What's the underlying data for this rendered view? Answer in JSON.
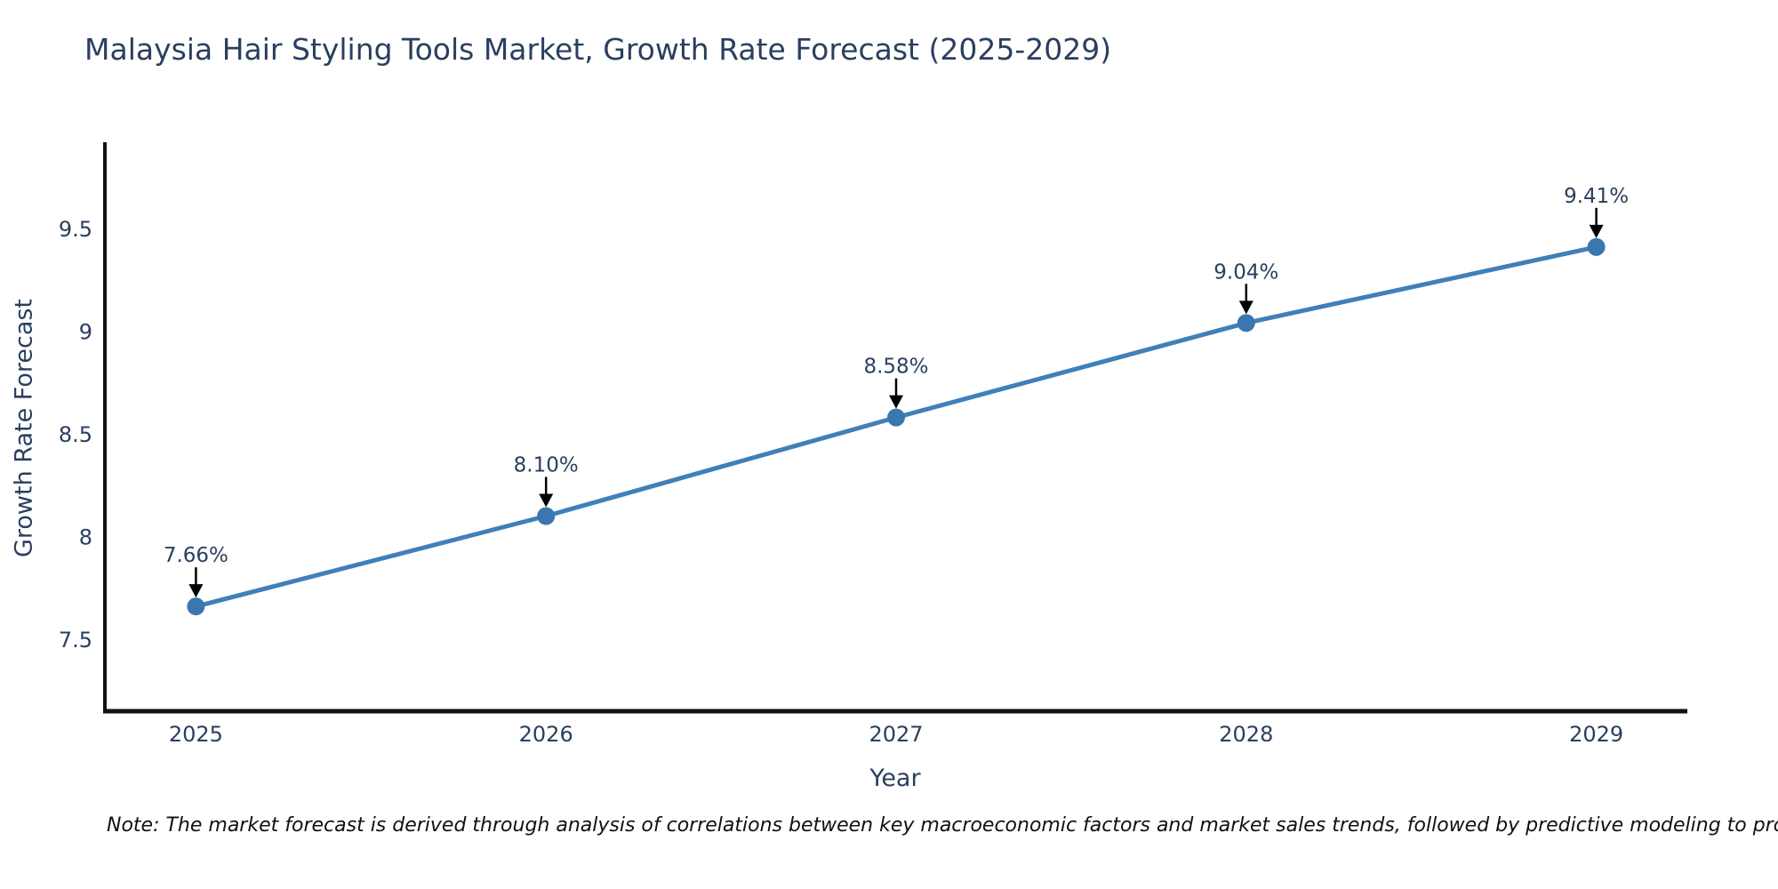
{
  "title": "Malaysia Hair Styling Tools Market, Growth Rate Forecast (2025-2029)",
  "note": "Note: The market forecast is derived through analysis of correlations between key macroeconomic factors and market sales trends, followed by predictive modeling to project future sales",
  "chart_data": {
    "type": "line",
    "title": "Malaysia Hair Styling Tools Market, Growth Rate Forecast (2025-2029)",
    "xlabel": "Year",
    "ylabel": "Growth Rate Forecast",
    "categories": [
      2025,
      2026,
      2027,
      2028,
      2029
    ],
    "x_tick_labels": [
      "2025",
      "2026",
      "2027",
      "2028",
      "2029"
    ],
    "values": [
      7.66,
      8.1,
      8.58,
      9.04,
      9.41
    ],
    "point_labels": [
      "7.66%",
      "8.10%",
      "8.58%",
      "9.04%",
      "9.41%"
    ],
    "yticks": [
      7.5,
      8.0,
      8.5,
      9.0,
      9.5
    ],
    "y_tick_labels": [
      "7.5",
      "8",
      "8.5",
      "9",
      "9.5"
    ],
    "ylim": [
      7.15,
      9.92
    ],
    "xlim": [
      2024.74,
      2029.26
    ],
    "grid": false,
    "legend_position": "none",
    "annotations_have_arrows": true,
    "colors": {
      "line": "#4080b8",
      "marker": "#3a77af",
      "axis": "#111111",
      "text": "#2a3f5f",
      "arrow": "#000000"
    }
  }
}
